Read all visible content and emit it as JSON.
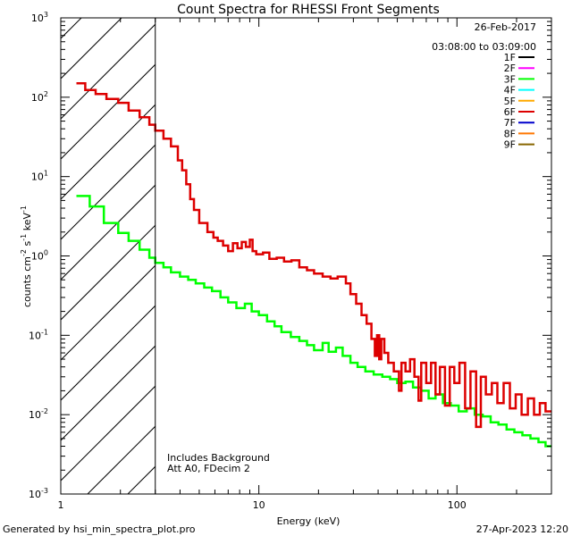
{
  "chart_data": {
    "type": "line",
    "title": "Count Spectra for RHESSI Front Segments",
    "xlabel": "Energy (keV)",
    "ylabel": "counts cm",
    "ylabel_parts": {
      "base": "counts cm",
      "exp1": "-2",
      "mid": " s",
      "exp2": "-1",
      "tail": " keV",
      "exp3": "-1"
    },
    "xscale": "log",
    "yscale": "log",
    "xlim": [
      1,
      300
    ],
    "ylim": [
      0.001,
      1000
    ],
    "x_tick_labels": [
      {
        "value": 1,
        "text": "1"
      },
      {
        "value": 10,
        "text": "10"
      },
      {
        "value": 100,
        "text": "100"
      }
    ],
    "y_tick_labels": [
      {
        "value": 1000,
        "base": "10",
        "exp": "3"
      },
      {
        "value": 100,
        "base": "10",
        "exp": "2"
      },
      {
        "value": 10,
        "base": "10",
        "exp": "1"
      },
      {
        "value": 1,
        "base": "10",
        "exp": "0"
      },
      {
        "value": 0.1,
        "base": "10",
        "exp": "-1"
      },
      {
        "value": 0.01,
        "base": "10",
        "exp": "-2"
      },
      {
        "value": 0.001,
        "base": "10",
        "exp": "-3"
      }
    ],
    "hatched_region": {
      "x_from": 1,
      "x_to": 3
    },
    "date": "26-Feb-2017",
    "time_range": "03:08:00 to 03:09:00",
    "legend": [
      {
        "label": "1F",
        "color": "#000000"
      },
      {
        "label": "2F",
        "color": "#ff00ff"
      },
      {
        "label": "3F",
        "color": "#00ff00"
      },
      {
        "label": "4F",
        "color": "#00ffff"
      },
      {
        "label": "5F",
        "color": "#ffaa00"
      },
      {
        "label": "6F",
        "color": "#dd0000"
      },
      {
        "label": "7F",
        "color": "#0000cc"
      },
      {
        "label": "8F",
        "color": "#ff7700"
      },
      {
        "label": "9F",
        "color": "#886600"
      }
    ],
    "annotations": [
      "Includes Background",
      "Att A0, FDecim 2"
    ],
    "series": [
      {
        "name": "6F",
        "color": "#dd0000",
        "points": [
          [
            1.2,
            150
          ],
          [
            1.33,
            150
          ],
          [
            1.33,
            123
          ],
          [
            1.5,
            123
          ],
          [
            1.5,
            110
          ],
          [
            1.7,
            110
          ],
          [
            1.7,
            95
          ],
          [
            1.95,
            95
          ],
          [
            1.95,
            85
          ],
          [
            2.2,
            85
          ],
          [
            2.2,
            68
          ],
          [
            2.5,
            68
          ],
          [
            2.5,
            56
          ],
          [
            2.8,
            56
          ],
          [
            2.8,
            45
          ],
          [
            3.0,
            45
          ],
          [
            3.0,
            38
          ],
          [
            3.3,
            38
          ],
          [
            3.3,
            30
          ],
          [
            3.6,
            30
          ],
          [
            3.6,
            24
          ],
          [
            3.9,
            24
          ],
          [
            3.9,
            16
          ],
          [
            4.1,
            16
          ],
          [
            4.1,
            12
          ],
          [
            4.3,
            12
          ],
          [
            4.3,
            8
          ],
          [
            4.5,
            8
          ],
          [
            4.5,
            5.2
          ],
          [
            4.7,
            5.2
          ],
          [
            4.7,
            3.8
          ],
          [
            5.0,
            3.8
          ],
          [
            5.0,
            2.6
          ],
          [
            5.5,
            2.6
          ],
          [
            5.5,
            2.0
          ],
          [
            5.9,
            2.0
          ],
          [
            5.9,
            1.7
          ],
          [
            6.2,
            1.7
          ],
          [
            6.2,
            1.55
          ],
          [
            6.6,
            1.55
          ],
          [
            6.6,
            1.35
          ],
          [
            7.0,
            1.35
          ],
          [
            7.0,
            1.15
          ],
          [
            7.4,
            1.15
          ],
          [
            7.4,
            1.45
          ],
          [
            7.8,
            1.45
          ],
          [
            7.8,
            1.25
          ],
          [
            8.2,
            1.25
          ],
          [
            8.2,
            1.5
          ],
          [
            8.6,
            1.5
          ],
          [
            8.6,
            1.3
          ],
          [
            9.0,
            1.3
          ],
          [
            9.0,
            1.6
          ],
          [
            9.3,
            1.6
          ],
          [
            9.3,
            1.15
          ],
          [
            9.7,
            1.15
          ],
          [
            9.7,
            1.05
          ],
          [
            10.5,
            1.05
          ],
          [
            10.5,
            1.1
          ],
          [
            11.3,
            1.1
          ],
          [
            11.3,
            0.92
          ],
          [
            12.3,
            0.92
          ],
          [
            12.3,
            0.95
          ],
          [
            13.4,
            0.95
          ],
          [
            13.4,
            0.85
          ],
          [
            14.6,
            0.85
          ],
          [
            14.6,
            0.88
          ],
          [
            16.0,
            0.88
          ],
          [
            16.0,
            0.72
          ],
          [
            17.5,
            0.72
          ],
          [
            17.5,
            0.66
          ],
          [
            19.0,
            0.66
          ],
          [
            19.0,
            0.6
          ],
          [
            21.0,
            0.6
          ],
          [
            21.0,
            0.55
          ],
          [
            23.0,
            0.55
          ],
          [
            23.0,
            0.52
          ],
          [
            25.0,
            0.52
          ],
          [
            25.0,
            0.55
          ],
          [
            27.5,
            0.55
          ],
          [
            27.5,
            0.45
          ],
          [
            29.0,
            0.45
          ],
          [
            29.0,
            0.33
          ],
          [
            31.0,
            0.33
          ],
          [
            31.0,
            0.25
          ],
          [
            33.0,
            0.25
          ],
          [
            33.0,
            0.18
          ],
          [
            35.0,
            0.18
          ],
          [
            35.0,
            0.14
          ],
          [
            37.0,
            0.14
          ],
          [
            37.0,
            0.09
          ],
          [
            38.5,
            0.09
          ],
          [
            38.5,
            0.055
          ],
          [
            39.5,
            0.055
          ],
          [
            39.5,
            0.1
          ],
          [
            40.5,
            0.1
          ],
          [
            40.5,
            0.05
          ],
          [
            41.5,
            0.05
          ],
          [
            41.5,
            0.09
          ],
          [
            43.0,
            0.09
          ],
          [
            43.0,
            0.06
          ],
          [
            45.0,
            0.06
          ],
          [
            45.0,
            0.045
          ],
          [
            48.0,
            0.045
          ],
          [
            48.0,
            0.035
          ],
          [
            51.0,
            0.035
          ],
          [
            51.0,
            0.02
          ],
          [
            52.5,
            0.02
          ],
          [
            52.5,
            0.045
          ],
          [
            55.0,
            0.045
          ],
          [
            55.0,
            0.035
          ],
          [
            58.0,
            0.035
          ],
          [
            58.0,
            0.05
          ],
          [
            61.0,
            0.05
          ],
          [
            61.0,
            0.03
          ],
          [
            64.0,
            0.03
          ],
          [
            64.0,
            0.015
          ],
          [
            66.0,
            0.015
          ],
          [
            66.0,
            0.045
          ],
          [
            70.0,
            0.045
          ],
          [
            70.0,
            0.025
          ],
          [
            74.0,
            0.025
          ],
          [
            74.0,
            0.045
          ],
          [
            78.0,
            0.045
          ],
          [
            78.0,
            0.018
          ],
          [
            82.0,
            0.018
          ],
          [
            82.0,
            0.04
          ],
          [
            87.0,
            0.04
          ],
          [
            87.0,
            0.013
          ],
          [
            92.0,
            0.013
          ],
          [
            92.0,
            0.04
          ],
          [
            97.0,
            0.04
          ],
          [
            97.0,
            0.025
          ],
          [
            103.0,
            0.025
          ],
          [
            103.0,
            0.045
          ],
          [
            110.0,
            0.045
          ],
          [
            110.0,
            0.012
          ],
          [
            117.0,
            0.012
          ],
          [
            117.0,
            0.035
          ],
          [
            125.0,
            0.035
          ],
          [
            125.0,
            0.007
          ],
          [
            132.0,
            0.007
          ],
          [
            132.0,
            0.03
          ],
          [
            140.0,
            0.03
          ],
          [
            140.0,
            0.018
          ],
          [
            150.0,
            0.018
          ],
          [
            150.0,
            0.025
          ],
          [
            160.0,
            0.025
          ],
          [
            160.0,
            0.014
          ],
          [
            172.0,
            0.014
          ],
          [
            172.0,
            0.025
          ],
          [
            185.0,
            0.025
          ],
          [
            185.0,
            0.012
          ],
          [
            198.0,
            0.012
          ],
          [
            198.0,
            0.018
          ],
          [
            212.0,
            0.018
          ],
          [
            212.0,
            0.01
          ],
          [
            228.0,
            0.01
          ],
          [
            228.0,
            0.016
          ],
          [
            245.0,
            0.016
          ],
          [
            245.0,
            0.01
          ],
          [
            262.0,
            0.01
          ],
          [
            262.0,
            0.014
          ],
          [
            280.0,
            0.014
          ],
          [
            280.0,
            0.011
          ],
          [
            300.0,
            0.011
          ]
        ]
      },
      {
        "name": "3F",
        "color": "#00ff00",
        "points": [
          [
            1.2,
            5.7
          ],
          [
            1.4,
            5.7
          ],
          [
            1.4,
            4.2
          ],
          [
            1.65,
            4.2
          ],
          [
            1.65,
            2.6
          ],
          [
            1.95,
            2.6
          ],
          [
            1.95,
            1.95
          ],
          [
            2.2,
            1.95
          ],
          [
            2.2,
            1.55
          ],
          [
            2.5,
            1.55
          ],
          [
            2.5,
            1.2
          ],
          [
            2.8,
            1.2
          ],
          [
            2.8,
            0.95
          ],
          [
            3.0,
            0.95
          ],
          [
            3.0,
            0.82
          ],
          [
            3.3,
            0.82
          ],
          [
            3.3,
            0.72
          ],
          [
            3.6,
            0.72
          ],
          [
            3.6,
            0.62
          ],
          [
            4.0,
            0.62
          ],
          [
            4.0,
            0.55
          ],
          [
            4.4,
            0.55
          ],
          [
            4.4,
            0.5
          ],
          [
            4.8,
            0.5
          ],
          [
            4.8,
            0.45
          ],
          [
            5.3,
            0.45
          ],
          [
            5.3,
            0.4
          ],
          [
            5.8,
            0.4
          ],
          [
            5.8,
            0.36
          ],
          [
            6.4,
            0.36
          ],
          [
            6.4,
            0.3
          ],
          [
            7.0,
            0.3
          ],
          [
            7.0,
            0.26
          ],
          [
            7.7,
            0.26
          ],
          [
            7.7,
            0.22
          ],
          [
            8.5,
            0.22
          ],
          [
            8.5,
            0.25
          ],
          [
            9.2,
            0.25
          ],
          [
            9.2,
            0.2
          ],
          [
            10.0,
            0.2
          ],
          [
            10.0,
            0.18
          ],
          [
            11.0,
            0.18
          ],
          [
            11.0,
            0.15
          ],
          [
            12.0,
            0.15
          ],
          [
            12.0,
            0.13
          ],
          [
            13.0,
            0.13
          ],
          [
            13.0,
            0.11
          ],
          [
            14.5,
            0.11
          ],
          [
            14.5,
            0.095
          ],
          [
            16.0,
            0.095
          ],
          [
            16.0,
            0.085
          ],
          [
            17.5,
            0.085
          ],
          [
            17.5,
            0.075
          ],
          [
            19.0,
            0.075
          ],
          [
            19.0,
            0.065
          ],
          [
            21.0,
            0.065
          ],
          [
            21.0,
            0.08
          ],
          [
            22.5,
            0.08
          ],
          [
            22.5,
            0.062
          ],
          [
            24.5,
            0.062
          ],
          [
            24.5,
            0.07
          ],
          [
            26.5,
            0.07
          ],
          [
            26.5,
            0.055
          ],
          [
            29.0,
            0.055
          ],
          [
            29.0,
            0.045
          ],
          [
            31.5,
            0.045
          ],
          [
            31.5,
            0.04
          ],
          [
            34.5,
            0.04
          ],
          [
            34.5,
            0.035
          ],
          [
            38.0,
            0.035
          ],
          [
            38.0,
            0.032
          ],
          [
            42.0,
            0.032
          ],
          [
            42.0,
            0.03
          ],
          [
            46.0,
            0.03
          ],
          [
            46.0,
            0.028
          ],
          [
            50.0,
            0.028
          ],
          [
            50.0,
            0.025
          ],
          [
            55.0,
            0.025
          ],
          [
            55.0,
            0.026
          ],
          [
            60.0,
            0.026
          ],
          [
            60.0,
            0.022
          ],
          [
            66.0,
            0.022
          ],
          [
            66.0,
            0.02
          ],
          [
            72.0,
            0.02
          ],
          [
            72.0,
            0.016
          ],
          [
            78.0,
            0.016
          ],
          [
            78.0,
            0.018
          ],
          [
            85.0,
            0.018
          ],
          [
            85.0,
            0.014
          ],
          [
            93.0,
            0.014
          ],
          [
            93.0,
            0.013
          ],
          [
            102.0,
            0.013
          ],
          [
            102.0,
            0.011
          ],
          [
            112.0,
            0.011
          ],
          [
            112.0,
            0.012
          ],
          [
            123.0,
            0.012
          ],
          [
            123.0,
            0.01
          ],
          [
            135.0,
            0.01
          ],
          [
            135.0,
            0.0095
          ],
          [
            148.0,
            0.0095
          ],
          [
            148.0,
            0.008
          ],
          [
            162.0,
            0.008
          ],
          [
            162.0,
            0.0075
          ],
          [
            178.0,
            0.0075
          ],
          [
            178.0,
            0.0065
          ],
          [
            195.0,
            0.0065
          ],
          [
            195.0,
            0.006
          ],
          [
            214.0,
            0.006
          ],
          [
            214.0,
            0.0055
          ],
          [
            235.0,
            0.0055
          ],
          [
            235.0,
            0.005
          ],
          [
            258.0,
            0.005
          ],
          [
            258.0,
            0.0045
          ],
          [
            280.0,
            0.0045
          ],
          [
            280.0,
            0.004
          ],
          [
            300.0,
            0.004
          ]
        ]
      }
    ]
  },
  "footer": {
    "generated_by": "Generated by hsi_min_spectra_plot.pro",
    "timestamp": "27-Apr-2023 12:20"
  }
}
